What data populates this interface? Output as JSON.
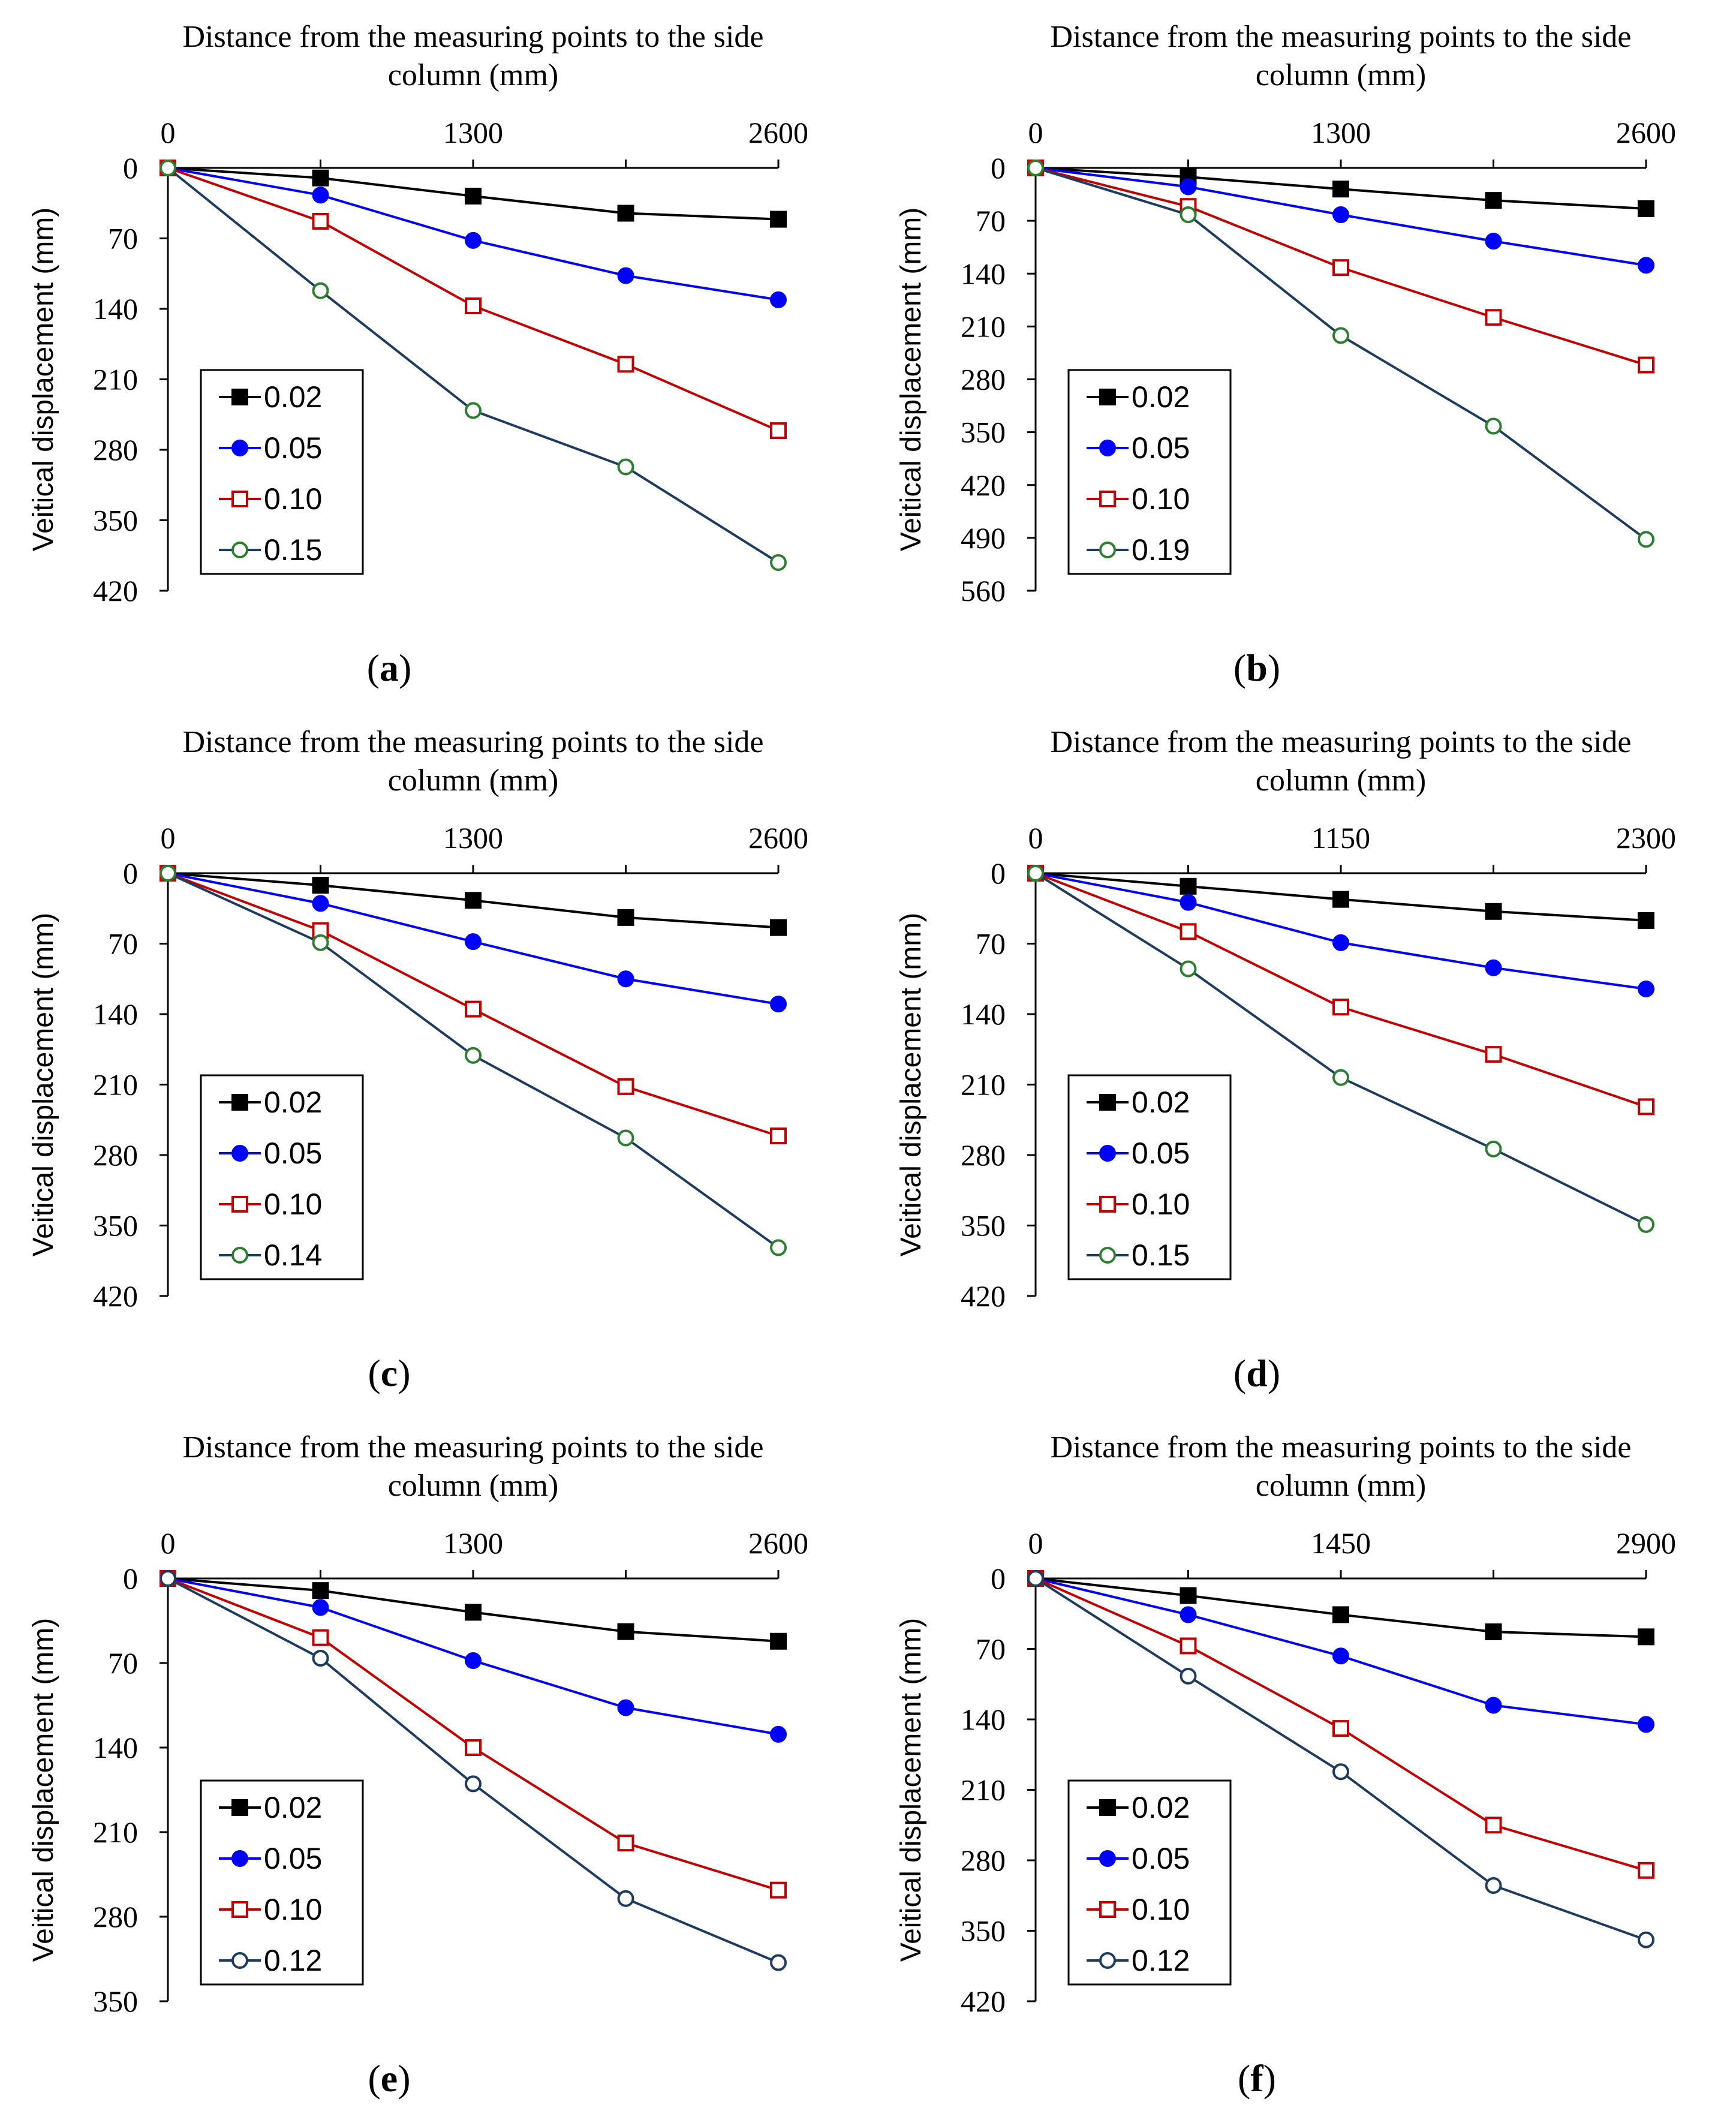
{
  "chart_data": [
    {
      "panel": "a",
      "type": "line",
      "title": "Distance from the measuring points to the side column (mm)",
      "title_lines": [
        "Distance from the measuring points to the side",
        "column  (mm)"
      ],
      "ylabel": "Veitical displacement (mm)",
      "xlim": [
        0,
        2600
      ],
      "xticks": [
        0,
        1300,
        2600
      ],
      "ylim": [
        0,
        420
      ],
      "yticks": [
        0,
        70,
        140,
        210,
        280,
        350,
        420
      ],
      "x": [
        0,
        650,
        1300,
        1950,
        2600
      ],
      "series": [
        {
          "name": "0.02",
          "values": [
            0,
            10,
            28,
            45,
            51
          ]
        },
        {
          "name": "0.05",
          "values": [
            0,
            27,
            72,
            107,
            131
          ]
        },
        {
          "name": "0.10",
          "values": [
            0,
            53,
            137,
            195,
            261
          ]
        },
        {
          "name": "0.15",
          "values": [
            0,
            122,
            241,
            297,
            392
          ]
        }
      ],
      "legend_position": "lower-left"
    },
    {
      "panel": "b",
      "type": "line",
      "title": "Distance from the measuring points to the side column (mm)",
      "title_lines": [
        "Distance from the measuring points to the side",
        "column  (mm)"
      ],
      "ylabel": "Veitical displacement (mm)",
      "xlim": [
        0,
        2600
      ],
      "xticks": [
        0,
        1300,
        2600
      ],
      "ylim": [
        0,
        560
      ],
      "yticks": [
        0,
        70,
        140,
        210,
        280,
        350,
        420,
        490,
        560
      ],
      "x": [
        0,
        650,
        1300,
        1950,
        2600
      ],
      "series": [
        {
          "name": "0.02",
          "values": [
            0,
            12,
            28,
            43,
            54
          ]
        },
        {
          "name": "0.05",
          "values": [
            0,
            25,
            62,
            97,
            129
          ]
        },
        {
          "name": "0.10",
          "values": [
            0,
            51,
            132,
            198,
            261
          ]
        },
        {
          "name": "0.19",
          "values": [
            0,
            62,
            222,
            342,
            492
          ]
        }
      ],
      "legend_position": "lower-left"
    },
    {
      "panel": "c",
      "type": "line",
      "title": "Distance from the measuring points to the side column (mm)",
      "title_lines": [
        "Distance from the measuring points to the side",
        "column  (mm)"
      ],
      "ylabel": "Veitical displacement (mm)",
      "xlim": [
        0,
        2600
      ],
      "xticks": [
        0,
        1300,
        2600
      ],
      "ylim": [
        0,
        420
      ],
      "yticks": [
        0,
        70,
        140,
        210,
        280,
        350,
        420
      ],
      "x": [
        0,
        650,
        1300,
        1950,
        2600
      ],
      "series": [
        {
          "name": "0.02",
          "values": [
            0,
            12,
            27,
            44,
            54
          ]
        },
        {
          "name": "0.05",
          "values": [
            0,
            30,
            68,
            105,
            130
          ]
        },
        {
          "name": "0.10",
          "values": [
            0,
            57,
            135,
            212,
            261
          ]
        },
        {
          "name": "0.14",
          "values": [
            0,
            69,
            181,
            263,
            372
          ]
        }
      ],
      "legend_position": "lower-left"
    },
    {
      "panel": "d",
      "type": "line",
      "title": "Distance from the measuring points to the side column (mm)",
      "title_lines": [
        "Distance from the measuring points to the side",
        "column  (mm)"
      ],
      "ylabel": "Veitical displacement (mm)",
      "xlim": [
        0,
        2300
      ],
      "xticks": [
        0,
        1150,
        2300
      ],
      "ylim": [
        0,
        420
      ],
      "yticks": [
        0,
        70,
        140,
        210,
        280,
        350,
        420
      ],
      "x": [
        0,
        575,
        1150,
        1725,
        2300
      ],
      "series": [
        {
          "name": "0.02",
          "values": [
            0,
            13,
            26,
            38,
            47
          ]
        },
        {
          "name": "0.05",
          "values": [
            0,
            29,
            69,
            94,
            115
          ]
        },
        {
          "name": "0.10",
          "values": [
            0,
            58,
            133,
            180,
            232
          ]
        },
        {
          "name": "0.15",
          "values": [
            0,
            95,
            203,
            274,
            349
          ]
        }
      ],
      "legend_position": "lower-left"
    },
    {
      "panel": "e",
      "type": "line",
      "title": "Distance from the measuring points to the side column (mm)",
      "title_lines": [
        "Distance from the measuring points to the side",
        "column  (mm)"
      ],
      "ylabel": "Veitical displacement (mm)",
      "xlim": [
        0,
        2600
      ],
      "xticks": [
        0,
        1300,
        2600
      ],
      "ylim": [
        0,
        350
      ],
      "yticks": [
        0,
        70,
        140,
        210,
        280,
        350
      ],
      "x": [
        0,
        650,
        1300,
        1950,
        2600
      ],
      "series": [
        {
          "name": "0.02",
          "values": [
            0,
            10,
            28,
            44,
            52
          ]
        },
        {
          "name": "0.05",
          "values": [
            0,
            24,
            68,
            107,
            129
          ]
        },
        {
          "name": "0.10",
          "values": [
            0,
            49,
            140,
            219,
            258
          ]
        },
        {
          "name": "0.12",
          "values": [
            0,
            66,
            170,
            265,
            318
          ]
        }
      ],
      "legend_position": "lower-left"
    },
    {
      "panel": "f",
      "type": "line",
      "title": "Distance from the measuring points to the side column (mm)",
      "title_lines": [
        "Distance from the measuring points to the side",
        "column  (mm)"
      ],
      "ylabel": "Veitical displacement (mm)",
      "xlim": [
        0,
        2900
      ],
      "xticks": [
        0,
        1450,
        2900
      ],
      "ylim": [
        0,
        420
      ],
      "yticks": [
        0,
        70,
        140,
        210,
        280,
        350,
        420
      ],
      "x": [
        0,
        725,
        1450,
        2175,
        2900
      ],
      "series": [
        {
          "name": "0.02",
          "values": [
            0,
            17,
            36,
            53,
            58
          ]
        },
        {
          "name": "0.05",
          "values": [
            0,
            36,
            77,
            126,
            145
          ]
        },
        {
          "name": "0.10",
          "values": [
            0,
            67,
            149,
            245,
            290
          ]
        },
        {
          "name": "0.12",
          "values": [
            0,
            97,
            192,
            305,
            359
          ]
        }
      ],
      "legend_position": "lower-left"
    }
  ],
  "panel_labels": [
    "(a)",
    "(b)",
    "(c)",
    "(d)",
    "(e)",
    "(f)"
  ],
  "series_styles": [
    {
      "line": "#000000",
      "marker": "filled-square",
      "fill": "#000000",
      "stroke": "#000000"
    },
    {
      "line": "#0000ff",
      "marker": "filled-circle",
      "fill": "#0000ff",
      "stroke": "#0000ff"
    },
    {
      "line": "#c00000",
      "marker": "open-square",
      "fill": "#ffffff",
      "stroke": "#c00000"
    },
    {
      "line": "#1f3b5e",
      "marker": "open-circle",
      "fill": "#ffffff",
      "stroke": "#2e7d32"
    }
  ],
  "series_styles_alt_last": {
    "line": "#1f3b5e",
    "marker": "open-circle",
    "fill": "#ffffff",
    "stroke": "#1f3b5e"
  }
}
